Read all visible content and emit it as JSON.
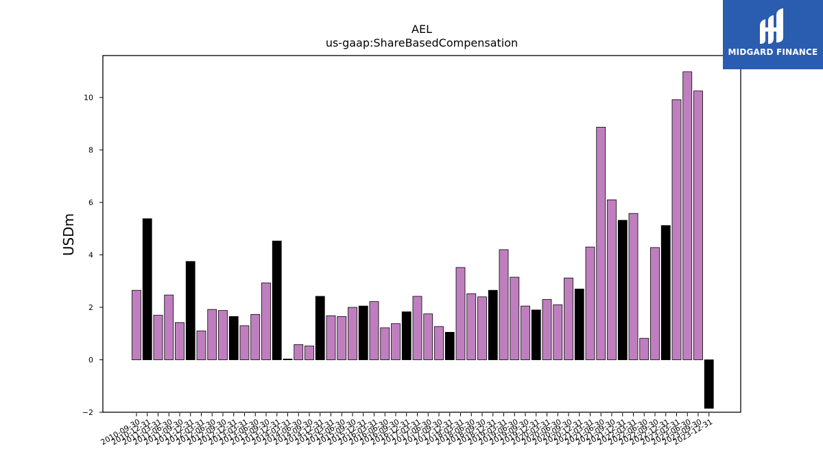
{
  "chart_data": {
    "type": "bar",
    "title": "AEL",
    "subtitle": "us-gaap:ShareBasedCompensation",
    "ylabel": "USDm",
    "xlabel": "",
    "ylim": [
      -2,
      11.6
    ],
    "yticks": [
      -2,
      0,
      2,
      4,
      6,
      8,
      10
    ],
    "colors": {
      "quarter": "#bf7fbf",
      "fiscal_year_end": "#000000"
    },
    "categories": [
      "2010-09-30",
      "2010-12-31",
      "2011-03-31",
      "2011-06-30",
      "2011-09-30",
      "2011-12-31",
      "2012-03-31",
      "2012-06-30",
      "2012-09-30",
      "2012-12-31",
      "2013-03-31",
      "2013-06-30",
      "2013-09-30",
      "2013-12-31",
      "2014-03-31",
      "2014-06-30",
      "2014-09-30",
      "2014-12-31",
      "2015-03-31",
      "2015-06-30",
      "2015-09-30",
      "2015-12-31",
      "2016-03-31",
      "2016-06-30",
      "2016-09-30",
      "2016-12-31",
      "2017-03-31",
      "2017-06-30",
      "2017-09-30",
      "2017-12-31",
      "2018-03-31",
      "2018-06-30",
      "2018-09-30",
      "2018-12-31",
      "2019-03-31",
      "2019-06-30",
      "2019-09-30",
      "2019-12-31",
      "2020-03-31",
      "2020-06-30",
      "2020-09-30",
      "2020-12-31",
      "2021-03-31",
      "2021-06-30",
      "2021-09-30",
      "2021-12-31",
      "2022-03-31",
      "2022-06-30",
      "2022-09-30",
      "2022-12-31",
      "2023-03-31",
      "2023-06-30",
      "2023-09-30",
      "2023-12-31"
    ],
    "values": [
      2.65,
      5.38,
      1.7,
      2.47,
      1.42,
      3.75,
      1.1,
      1.92,
      1.88,
      1.65,
      1.3,
      1.73,
      2.93,
      4.53,
      0.03,
      0.58,
      0.53,
      2.42,
      1.68,
      1.65,
      2.0,
      2.05,
      2.22,
      1.22,
      1.38,
      1.83,
      2.42,
      1.75,
      1.27,
      1.05,
      3.52,
      2.52,
      2.4,
      2.65,
      4.2,
      3.15,
      2.05,
      1.9,
      2.3,
      2.1,
      3.12,
      2.7,
      4.3,
      8.87,
      6.1,
      5.32,
      5.58,
      0.82,
      4.28,
      5.12,
      9.92,
      10.98,
      10.25,
      -1.85
    ],
    "kind": [
      "q",
      "y",
      "q",
      "q",
      "q",
      "y",
      "q",
      "q",
      "q",
      "y",
      "q",
      "q",
      "q",
      "y",
      "y",
      "q",
      "q",
      "y",
      "q",
      "q",
      "q",
      "y",
      "q",
      "q",
      "q",
      "y",
      "q",
      "q",
      "q",
      "y",
      "q",
      "q",
      "q",
      "y",
      "q",
      "q",
      "q",
      "y",
      "q",
      "q",
      "q",
      "y",
      "q",
      "q",
      "q",
      "y",
      "q",
      "q",
      "q",
      "y",
      "q",
      "q",
      "q",
      "y"
    ],
    "grid": false,
    "legend": "none"
  },
  "logo": {
    "text": "MIDGARD FINANCE",
    "icon": "midgard-logo-icon"
  }
}
